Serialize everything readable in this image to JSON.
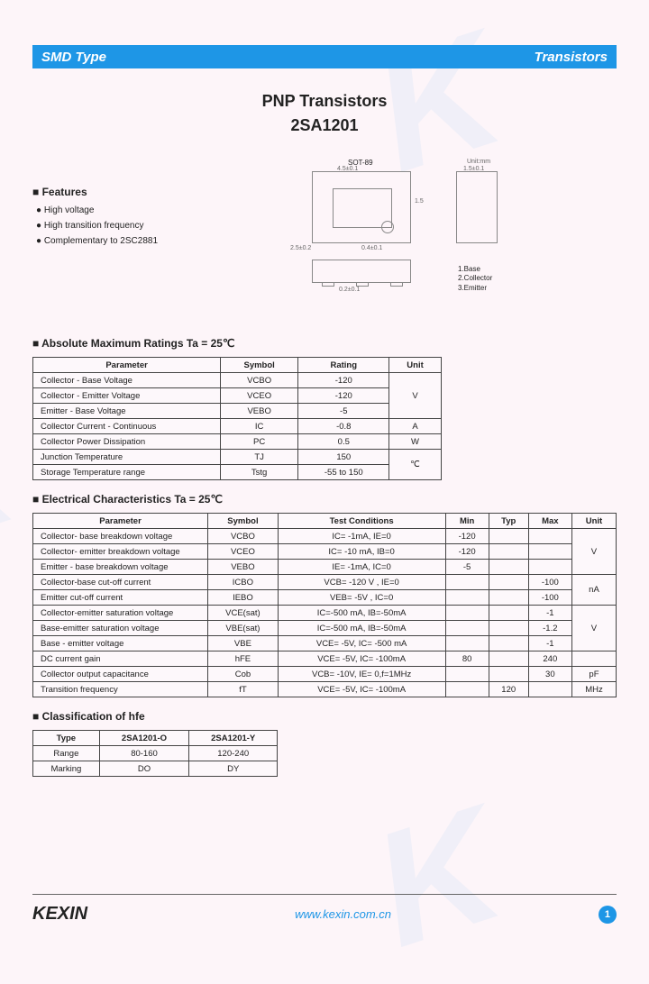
{
  "header": {
    "left": "SMD Type",
    "right": "Transistors"
  },
  "title": {
    "line1": "PNP  Transistors",
    "line2": "2SA1201"
  },
  "features": {
    "heading": "Features",
    "items": [
      "High voltage",
      "High transition frequency",
      "Complementary to 2SC2881"
    ]
  },
  "diagram": {
    "package_label": "SOT-89",
    "unit_label": "Unit:mm",
    "pins": [
      "1.Base",
      "2.Collector",
      "3.Emitter"
    ],
    "dims": [
      "4.5±0.1",
      "1.5±0.1",
      "2.5±0.2",
      "0.4±0.1",
      "1.5",
      "0.2±0.1",
      "0.4±0.1",
      "0.4"
    ]
  },
  "amr": {
    "heading": "Absolute Maximum Ratings Ta = 25℃",
    "columns": [
      "Parameter",
      "Symbol",
      "Rating",
      "Unit"
    ],
    "rows": [
      [
        "Collector - Base Voltage",
        "VCBO",
        "-120",
        "V"
      ],
      [
        "Collector - Emitter Voltage",
        "VCEO",
        "-120",
        "V"
      ],
      [
        "Emitter - Base Voltage",
        "VEBO",
        "-5",
        "V"
      ],
      [
        "Collector Current  - Continuous",
        "IC",
        "-0.8",
        "A"
      ],
      [
        "Collector Power Dissipation",
        "PC",
        "0.5",
        "W"
      ],
      [
        "Junction Temperature",
        "TJ",
        "150",
        "℃"
      ],
      [
        "Storage Temperature range",
        "Tstg",
        "-55 to 150",
        "℃"
      ]
    ],
    "unit_merges": [
      [
        0,
        3
      ],
      [
        3,
        1
      ],
      [
        4,
        1
      ],
      [
        5,
        2
      ]
    ]
  },
  "elec": {
    "heading": "Electrical Characteristics Ta = 25℃",
    "columns": [
      "Parameter",
      "Symbol",
      "Test Conditions",
      "Min",
      "Typ",
      "Max",
      "Unit"
    ],
    "rows": [
      [
        "Collector- base breakdown voltage",
        "VCBO",
        "IC= -1mA,  IE=0",
        "-120",
        "",
        "",
        "V"
      ],
      [
        "Collector- emitter breakdown voltage",
        "VCEO",
        "IC= -10 mA,  IB=0",
        "-120",
        "",
        "",
        "V"
      ],
      [
        "Emitter - base breakdown voltage",
        "VEBO",
        "IE= -1mA,  IC=0",
        "-5",
        "",
        "",
        "V"
      ],
      [
        "Collector-base cut-off current",
        "ICBO",
        "VCB= -120 V , IE=0",
        "",
        "",
        "-100",
        "nA"
      ],
      [
        "Emitter cut-off current",
        "IEBO",
        "VEB= -5V , IC=0",
        "",
        "",
        "-100",
        "nA"
      ],
      [
        "Collector-emitter saturation voltage",
        "VCE(sat)",
        "IC=-500 mA, IB=-50mA",
        "",
        "",
        "-1",
        "V"
      ],
      [
        "Base-emitter saturation voltage",
        "VBE(sat)",
        "IC=-500 mA, IB=-50mA",
        "",
        "",
        "-1.2",
        "V"
      ],
      [
        "Base - emitter voltage",
        "VBE",
        "VCE= -5V, IC= -500 mA",
        "",
        "",
        "-1",
        "V"
      ],
      [
        "DC current gain",
        "hFE",
        "VCE= -5V, IC= -100mA",
        "80",
        "",
        "240",
        ""
      ],
      [
        "Collector output  capacitance",
        "Cob",
        "VCB= -10V, IE= 0,f=1MHz",
        "",
        "",
        "30",
        "pF"
      ],
      [
        "Transition frequency",
        "fT",
        "VCE= -5V, IC= -100mA",
        "",
        "120",
        "",
        "MHz"
      ]
    ],
    "unit_merges": [
      [
        0,
        3
      ],
      [
        3,
        2
      ],
      [
        5,
        3
      ],
      [
        8,
        1
      ],
      [
        9,
        1
      ],
      [
        10,
        1
      ]
    ]
  },
  "hfe": {
    "heading": "Classification of hfe",
    "columns": [
      "Type",
      "2SA1201-O",
      "2SA1201-Y"
    ],
    "rows": [
      [
        "Range",
        "80-160",
        "120-240"
      ],
      [
        "Marking",
        "DO",
        "DY"
      ]
    ]
  },
  "footer": {
    "logo": "KEXIN",
    "url": "www.kexin.com.cn",
    "page": "1"
  }
}
